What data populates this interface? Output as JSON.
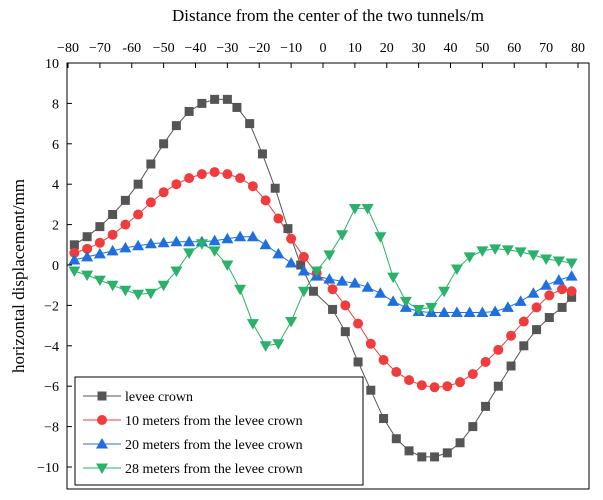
{
  "chart_data": {
    "type": "line",
    "title": "",
    "xlabel": "Distance from the center of the two tunnels/m",
    "ylabel": "horizontal displacement/mm",
    "xlim": [
      -80,
      80
    ],
    "ylim": [
      -11,
      10
    ],
    "x_axis_position": "top",
    "xticks": [
      -80,
      -70,
      -60,
      -50,
      -40,
      -30,
      -20,
      -10,
      0,
      10,
      20,
      30,
      40,
      50,
      60,
      70,
      80
    ],
    "xtick_labels": [
      "−80",
      "−70",
      "-60",
      "−50",
      "−40",
      "−30",
      "−20",
      "−10",
      "0",
      "10",
      "20",
      "30",
      "40",
      "50",
      "60",
      "70",
      "80"
    ],
    "yticks": [
      -10,
      -8,
      -6,
      -4,
      -2,
      0,
      2,
      4,
      6,
      8,
      10
    ],
    "ytick_labels": [
      "−10",
      "−8",
      "−6",
      "−4",
      "−2",
      "0",
      "2",
      "4",
      "6",
      "8",
      "10"
    ],
    "grid": false,
    "legend_position": "bottom-left",
    "x": [
      -78,
      -74,
      -70,
      -66,
      -62,
      -58,
      -54,
      -50,
      -46,
      -42,
      -38,
      -34,
      -30,
      -26,
      -22,
      -18,
      -14,
      -10,
      -6,
      -2,
      2,
      6,
      10,
      14,
      18,
      22,
      26,
      30,
      34,
      38,
      42,
      46,
      50,
      54,
      58,
      62,
      66,
      70,
      74,
      78
    ],
    "series": [
      {
        "name": "levee crown",
        "marker": "square",
        "color": "#555555",
        "values": [
          1.0,
          1.4,
          1.9,
          2.5,
          3.2,
          4.0,
          5.0,
          6.0,
          6.9,
          7.6,
          8.0,
          8.2,
          8.2,
          7.8,
          7.0,
          5.5,
          3.8,
          1.8,
          0.0,
          -1.3,
          -2.2,
          -3.3,
          -4.8,
          -6.2,
          -7.6,
          -8.6,
          -9.2,
          -9.5,
          -9.5,
          -9.3,
          -8.8,
          -8.0,
          -7.0,
          -6.0,
          -5.0,
          -4.0,
          -3.2,
          -2.6,
          -2.1,
          -1.6
        ],
        "x_override": [
          -78,
          -74,
          -70,
          -66,
          -62,
          -58,
          -54,
          -50,
          -46,
          -42,
          -38,
          -34,
          -30,
          -27,
          -23,
          -19,
          -15,
          -11,
          -7,
          -3,
          3,
          7,
          11,
          15,
          19,
          23,
          27,
          31,
          35,
          39,
          43,
          47,
          51,
          55,
          59,
          63,
          67,
          71,
          75,
          78
        ]
      },
      {
        "name": "10 meters from the  levee crown",
        "marker": "circle",
        "color": "#f03c3c",
        "values": [
          0.6,
          0.8,
          1.1,
          1.5,
          2.0,
          2.5,
          3.1,
          3.6,
          4.0,
          4.3,
          4.5,
          4.6,
          4.5,
          4.3,
          3.9,
          3.2,
          2.3,
          1.3,
          0.4,
          -0.4,
          -1.2,
          -2.0,
          -2.9,
          -3.9,
          -4.7,
          -5.3,
          -5.7,
          -5.95,
          -6.05,
          -6.0,
          -5.8,
          -5.4,
          -4.8,
          -4.2,
          -3.5,
          -2.8,
          -2.1,
          -1.5,
          -1.2,
          -1.3
        ],
        "x_override": [
          -78,
          -74,
          -70,
          -66,
          -62,
          -58,
          -54,
          -50,
          -46,
          -42,
          -38,
          -34,
          -30,
          -26,
          -22,
          -18,
          -14,
          -10,
          -6,
          -2,
          3,
          7,
          11,
          15,
          19,
          23,
          27,
          31,
          35,
          39,
          43,
          47,
          51,
          55,
          59,
          63,
          67,
          71,
          75,
          78
        ]
      },
      {
        "name": "20 meters from the  levee crown",
        "marker": "triangle-up",
        "color": "#1f6fe0",
        "values": [
          0.25,
          0.4,
          0.55,
          0.7,
          0.85,
          0.95,
          1.05,
          1.1,
          1.15,
          1.15,
          1.15,
          1.2,
          1.3,
          1.4,
          1.4,
          1.0,
          0.55,
          0.1,
          -0.3,
          -0.55,
          -0.7,
          -0.8,
          -0.9,
          -1.1,
          -1.4,
          -1.8,
          -2.1,
          -2.3,
          -2.35,
          -2.35,
          -2.35,
          -2.35,
          -2.35,
          -2.3,
          -2.1,
          -1.8,
          -1.4,
          -1.0,
          -0.75,
          -0.55
        ],
        "x_override": [
          -78,
          -74,
          -70,
          -66,
          -62,
          -58,
          -54,
          -50,
          -46,
          -42,
          -38,
          -34,
          -30,
          -26,
          -22,
          -18,
          -14,
          -10,
          -6,
          -2,
          2,
          6,
          10,
          14,
          18,
          22,
          26,
          30,
          34,
          38,
          42,
          46,
          50,
          54,
          58,
          62,
          66,
          70,
          74,
          78
        ]
      },
      {
        "name": "28 meters from the  levee crown",
        "marker": "triangle-down",
        "color": "#2ab26b",
        "values": [
          -0.3,
          -0.5,
          -0.75,
          -1.0,
          -1.25,
          -1.45,
          -1.4,
          -1.0,
          -0.3,
          0.6,
          1.05,
          0.7,
          0.0,
          -1.2,
          -2.9,
          -4.0,
          -3.9,
          -2.8,
          -1.3,
          -0.3,
          0.5,
          1.5,
          2.8,
          2.8,
          1.4,
          -0.6,
          -1.8,
          -2.2,
          -2.1,
          -1.3,
          -0.2,
          0.4,
          0.7,
          0.8,
          0.75,
          0.65,
          0.5,
          0.3,
          0.2,
          0.1
        ],
        "x_override": [
          -78,
          -74,
          -70,
          -66,
          -62,
          -58,
          -54,
          -50,
          -46,
          -42,
          -38,
          -34,
          -30,
          -26,
          -22,
          -18,
          -14,
          -10,
          -6,
          -2,
          2,
          6,
          10,
          14,
          18,
          22,
          26,
          30,
          34,
          38,
          42,
          46,
          50,
          54,
          58,
          62,
          66,
          70,
          74,
          78
        ]
      }
    ]
  }
}
